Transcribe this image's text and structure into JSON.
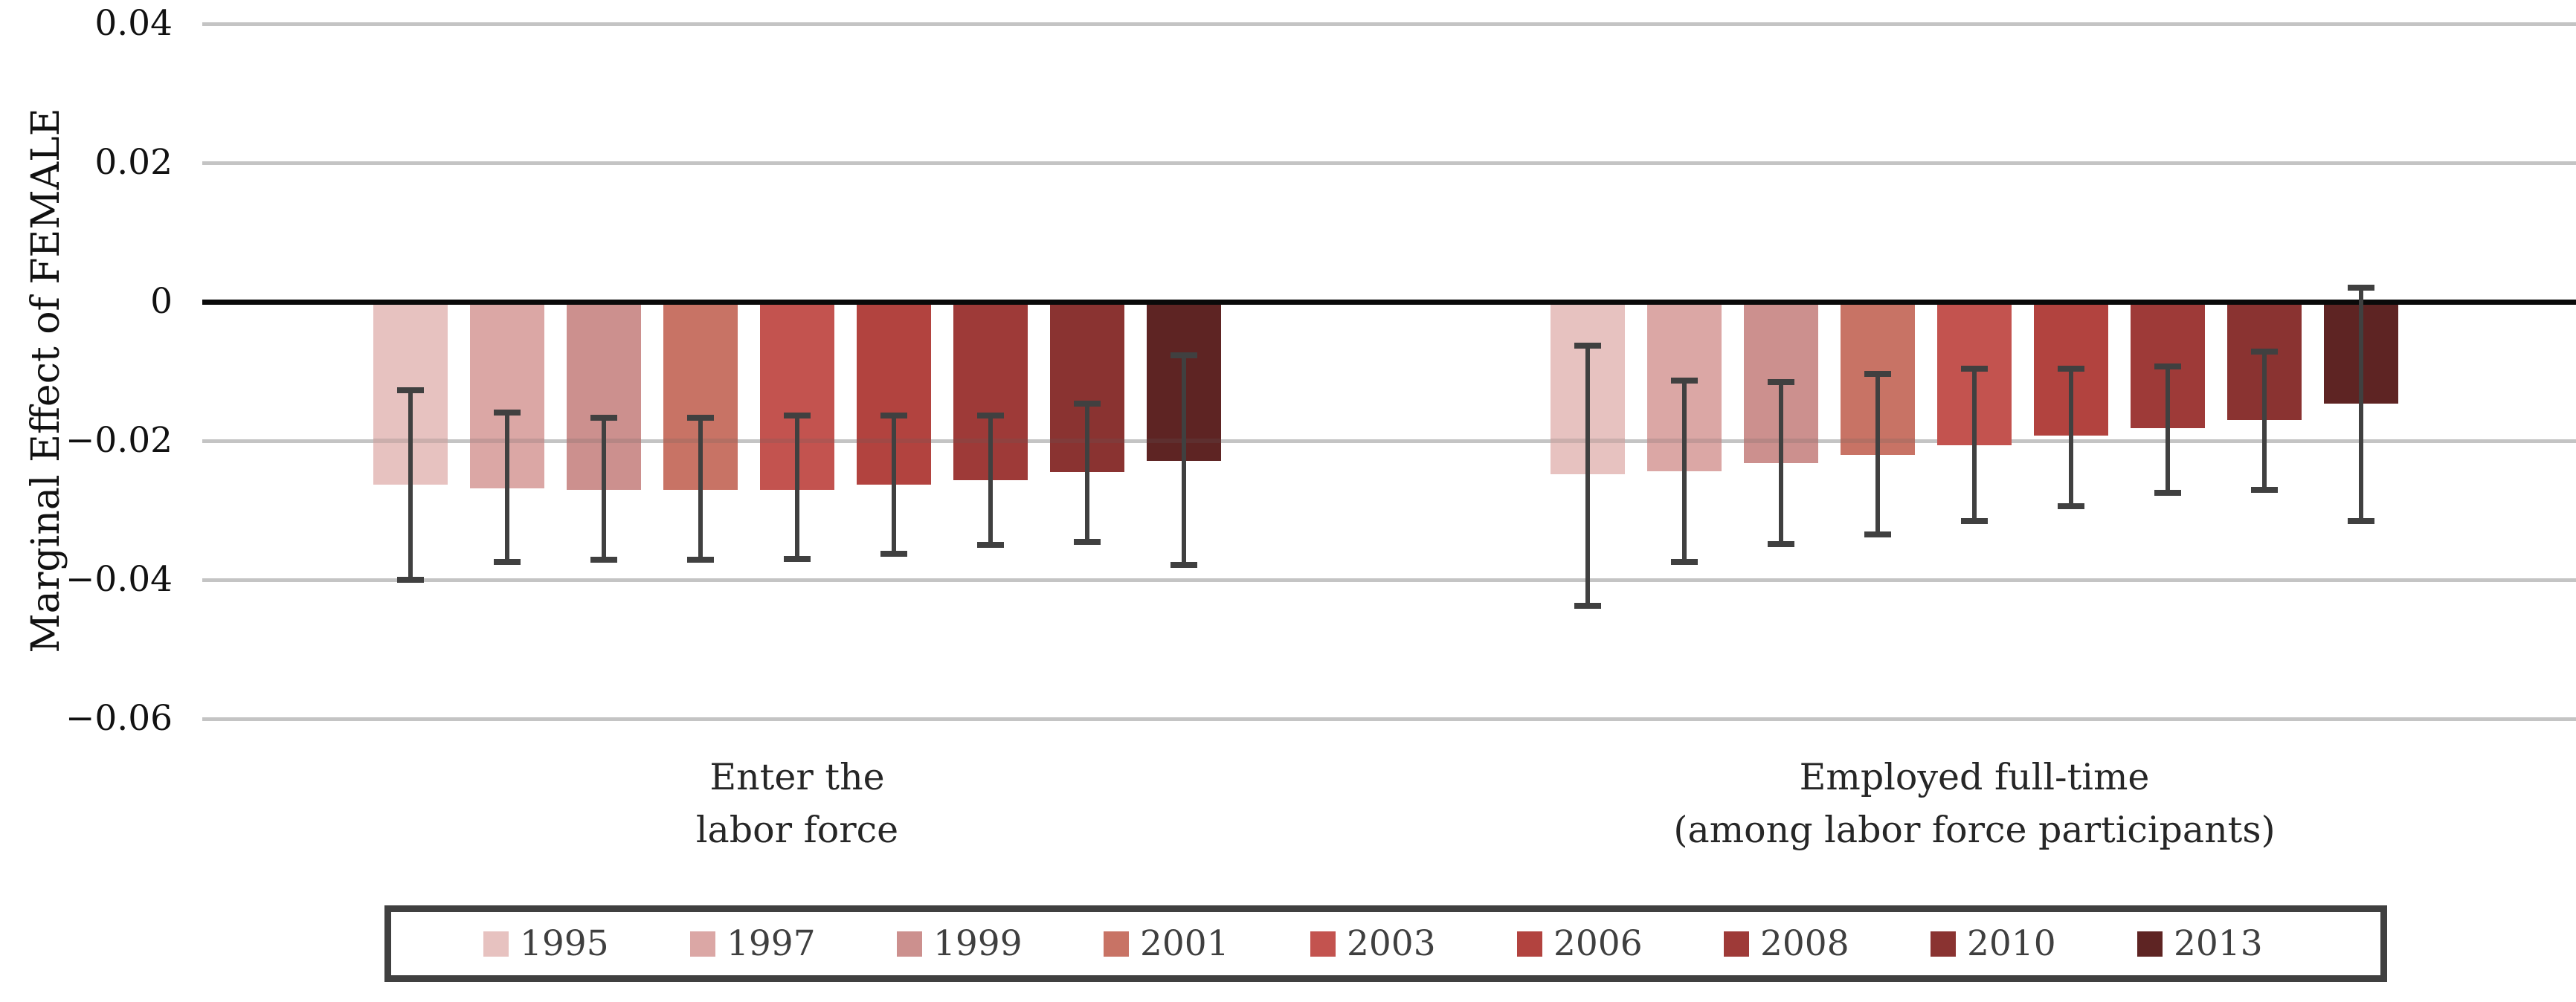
{
  "chart_data": {
    "type": "bar",
    "title": "",
    "ylabel": "Marginal Effect of FEMALE",
    "xlabel": "",
    "ylim": [
      -0.06,
      0.04
    ],
    "grid": true,
    "legend_position": "bottom",
    "yticks": [
      {
        "value": 0.04,
        "label": "0.04"
      },
      {
        "value": 0.02,
        "label": "0.02"
      },
      {
        "value": 0,
        "label": "0"
      },
      {
        "value": -0.02,
        "label": "−0.02"
      },
      {
        "value": -0.04,
        "label": "−0.04"
      },
      {
        "value": -0.06,
        "label": "−0.06"
      }
    ],
    "categories": [
      {
        "id": "enter-labor-force",
        "label_lines": [
          "Enter the",
          "labor force"
        ]
      },
      {
        "id": "employed-full-time",
        "label_lines": [
          "Employed full-time",
          "(among labor force participants)"
        ]
      }
    ],
    "series": [
      {
        "name": "1995",
        "color": "#e7c2c0",
        "values": [
          -0.0263,
          -0.0248
        ],
        "ci_low": [
          -0.04,
          -0.0437
        ],
        "ci_high": [
          -0.0127,
          -0.0063
        ]
      },
      {
        "name": "1997",
        "color": "#dba7a5",
        "values": [
          -0.0268,
          -0.0244
        ],
        "ci_low": [
          -0.0374,
          -0.0374
        ],
        "ci_high": [
          -0.0159,
          -0.0113
        ]
      },
      {
        "name": "1999",
        "color": "#cc908e",
        "values": [
          -0.0271,
          -0.0232
        ],
        "ci_low": [
          -0.0371,
          -0.0349
        ],
        "ci_high": [
          -0.0167,
          -0.0116
        ]
      },
      {
        "name": "2001",
        "color": "#c87365",
        "values": [
          -0.0271,
          -0.022
        ],
        "ci_low": [
          -0.0371,
          -0.0335
        ],
        "ci_high": [
          -0.0167,
          -0.0104
        ]
      },
      {
        "name": "2003",
        "color": "#c3534f",
        "values": [
          -0.0271,
          -0.0206
        ],
        "ci_low": [
          -0.037,
          -0.0315
        ],
        "ci_high": [
          -0.0164,
          -0.0096
        ]
      },
      {
        "name": "2006",
        "color": "#b2433f",
        "values": [
          -0.0263,
          -0.0193
        ],
        "ci_low": [
          -0.0363,
          -0.0294
        ],
        "ci_high": [
          -0.0164,
          -0.0096
        ]
      },
      {
        "name": "2008",
        "color": "#9e3a38",
        "values": [
          -0.0257,
          -0.0182
        ],
        "ci_low": [
          -0.035,
          -0.0275
        ],
        "ci_high": [
          -0.0164,
          -0.0093
        ]
      },
      {
        "name": "2010",
        "color": "#8a3331",
        "values": [
          -0.0245,
          -0.017
        ],
        "ci_low": [
          -0.0345,
          -0.0271
        ],
        "ci_high": [
          -0.0146,
          -0.0072
        ]
      },
      {
        "name": "2013",
        "color": "#5e2423",
        "values": [
          -0.0229,
          -0.0147
        ],
        "ci_low": [
          -0.0379,
          -0.0315
        ],
        "ci_high": [
          -0.0077,
          0.002
        ]
      }
    ],
    "colors": {
      "gridline": "#c4c4c4",
      "zero_line": "#0a0a0a",
      "error_bar": "#404040",
      "tick_text": "#111111",
      "category_text": "#262626",
      "legend_text": "#3f3f3f",
      "legend_border": "#404040"
    }
  }
}
